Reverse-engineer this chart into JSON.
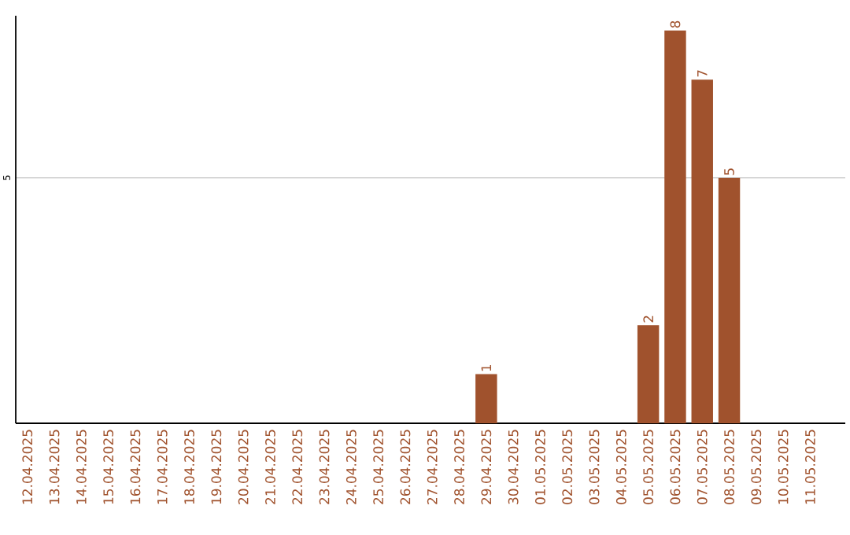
{
  "chart_data": {
    "type": "bar",
    "categories": [
      "12.04.2025",
      "13.04.2025",
      "14.04.2025",
      "15.04.2025",
      "16.04.2025",
      "17.04.2025",
      "18.04.2025",
      "19.04.2025",
      "20.04.2025",
      "21.04.2025",
      "22.04.2025",
      "23.04.2025",
      "24.04.2025",
      "25.04.2025",
      "26.04.2025",
      "27.04.2025",
      "28.04.2025",
      "29.04.2025",
      "30.04.2025",
      "01.05.2025",
      "02.05.2025",
      "03.05.2025",
      "04.05.2025",
      "05.05.2025",
      "06.05.2025",
      "07.05.2025",
      "08.05.2025",
      "09.05.2025",
      "10.05.2025",
      "11.05.2025"
    ],
    "values": [
      null,
      null,
      null,
      null,
      null,
      null,
      null,
      null,
      null,
      null,
      null,
      null,
      null,
      null,
      null,
      null,
      null,
      1,
      null,
      null,
      null,
      null,
      null,
      2,
      8,
      7,
      5,
      null,
      null,
      null
    ],
    "data_labels": true,
    "color": "#a0522d",
    "ylim": [
      0,
      8.3
    ],
    "yticks": [
      5
    ],
    "grid": "y"
  }
}
